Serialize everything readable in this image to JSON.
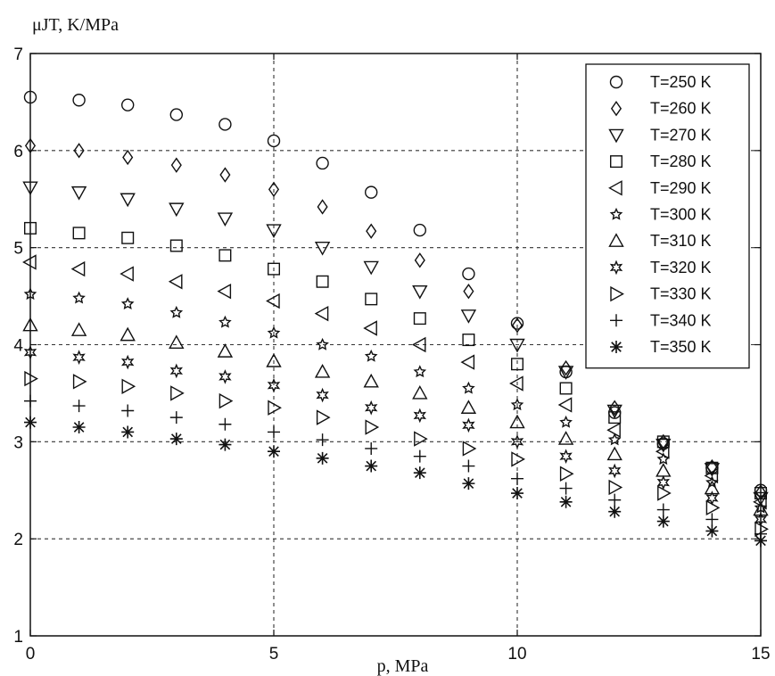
{
  "chart_data": {
    "type": "scatter",
    "title": "",
    "ylabel": "μJT, K/MPa",
    "xlabel": "p, MPa",
    "xlim": [
      0,
      15
    ],
    "ylim": [
      1,
      7
    ],
    "xticks": [
      "0",
      "5",
      "10",
      "15"
    ],
    "yticks": [
      "1",
      "2",
      "3",
      "4",
      "5",
      "6",
      "7"
    ],
    "grid": true,
    "legend_position": "top-right",
    "series": [
      {
        "name": "T=250 K",
        "marker": "circle",
        "x": [
          0,
          1,
          2,
          3,
          4,
          5,
          6,
          7,
          8,
          9,
          10,
          11,
          12,
          13,
          14,
          15
        ],
        "values": [
          6.55,
          6.52,
          6.47,
          6.37,
          6.27,
          6.1,
          5.87,
          5.57,
          5.18,
          4.73,
          4.22,
          3.72,
          3.3,
          2.98,
          2.73,
          2.5
        ]
      },
      {
        "name": "T=260 K",
        "marker": "diamond",
        "x": [
          0,
          1,
          2,
          3,
          4,
          5,
          6,
          7,
          8,
          9,
          10,
          11,
          12,
          13,
          14,
          15
        ],
        "values": [
          6.05,
          6.0,
          5.93,
          5.85,
          5.75,
          5.6,
          5.42,
          5.17,
          4.87,
          4.55,
          4.2,
          3.76,
          3.35,
          3.0,
          2.74,
          2.48
        ]
      },
      {
        "name": "T=270 K",
        "marker": "triangle-down",
        "x": [
          0,
          1,
          2,
          3,
          4,
          5,
          6,
          7,
          8,
          9,
          10,
          11,
          12,
          13,
          14,
          15
        ],
        "values": [
          5.62,
          5.57,
          5.5,
          5.4,
          5.3,
          5.18,
          5.0,
          4.8,
          4.55,
          4.3,
          4.0,
          3.72,
          3.32,
          2.97,
          2.72,
          2.42
        ]
      },
      {
        "name": "T=280 K",
        "marker": "square",
        "x": [
          0,
          1,
          2,
          3,
          4,
          5,
          6,
          7,
          8,
          9,
          10,
          11,
          12,
          13,
          14,
          15
        ],
        "values": [
          5.2,
          5.15,
          5.1,
          5.02,
          4.92,
          4.78,
          4.65,
          4.47,
          4.27,
          4.05,
          3.8,
          3.55,
          3.25,
          3.0,
          2.73,
          2.47
        ]
      },
      {
        "name": "T=290 K",
        "marker": "triangle-left",
        "x": [
          0,
          1,
          2,
          3,
          4,
          5,
          6,
          7,
          8,
          9,
          10,
          11,
          12,
          13,
          14,
          15
        ],
        "values": [
          4.85,
          4.78,
          4.73,
          4.65,
          4.55,
          4.45,
          4.32,
          4.17,
          4.0,
          3.82,
          3.6,
          3.38,
          3.12,
          2.9,
          2.65,
          2.38
        ]
      },
      {
        "name": "T=300 K",
        "marker": "star5",
        "x": [
          0,
          1,
          2,
          3,
          4,
          5,
          6,
          7,
          8,
          9,
          10,
          11,
          12,
          13,
          14,
          15
        ],
        "values": [
          4.52,
          4.48,
          4.42,
          4.33,
          4.23,
          4.12,
          4.0,
          3.88,
          3.72,
          3.55,
          3.38,
          3.2,
          3.02,
          2.82,
          2.58,
          2.32
        ]
      },
      {
        "name": "T=310 K",
        "marker": "triangle-up",
        "x": [
          0,
          1,
          2,
          3,
          4,
          5,
          6,
          7,
          8,
          9,
          10,
          11,
          12,
          13,
          14,
          15
        ],
        "values": [
          4.2,
          4.15,
          4.1,
          4.02,
          3.93,
          3.83,
          3.72,
          3.62,
          3.5,
          3.35,
          3.2,
          3.03,
          2.87,
          2.7,
          2.52,
          2.3
        ]
      },
      {
        "name": "T=320 K",
        "marker": "star6",
        "x": [
          0,
          1,
          2,
          3,
          4,
          5,
          6,
          7,
          8,
          9,
          10,
          11,
          12,
          13,
          14,
          15
        ],
        "values": [
          3.92,
          3.87,
          3.82,
          3.73,
          3.67,
          3.58,
          3.48,
          3.35,
          3.27,
          3.17,
          3.0,
          2.85,
          2.7,
          2.58,
          2.42,
          2.2
        ]
      },
      {
        "name": "T=330 K",
        "marker": "triangle-right",
        "x": [
          0,
          1,
          2,
          3,
          4,
          5,
          6,
          7,
          8,
          9,
          10,
          11,
          12,
          13,
          14,
          15
        ],
        "values": [
          3.65,
          3.62,
          3.57,
          3.5,
          3.42,
          3.35,
          3.25,
          3.15,
          3.03,
          2.93,
          2.82,
          2.67,
          2.53,
          2.47,
          2.32,
          2.1
        ]
      },
      {
        "name": "T=340 K",
        "marker": "plus",
        "x": [
          0,
          1,
          2,
          3,
          4,
          5,
          6,
          7,
          8,
          9,
          10,
          11,
          12,
          13,
          14,
          15
        ],
        "values": [
          3.42,
          3.37,
          3.32,
          3.25,
          3.18,
          3.1,
          3.02,
          2.93,
          2.85,
          2.75,
          2.62,
          2.52,
          2.4,
          2.3,
          2.2,
          2.05
        ]
      },
      {
        "name": "T=350 K",
        "marker": "asterisk",
        "x": [
          0,
          1,
          2,
          3,
          4,
          5,
          6,
          7,
          8,
          9,
          10,
          11,
          12,
          13,
          14,
          15
        ],
        "values": [
          3.2,
          3.15,
          3.1,
          3.03,
          2.97,
          2.9,
          2.83,
          2.75,
          2.68,
          2.57,
          2.47,
          2.38,
          2.28,
          2.18,
          2.08,
          1.98
        ]
      }
    ]
  }
}
